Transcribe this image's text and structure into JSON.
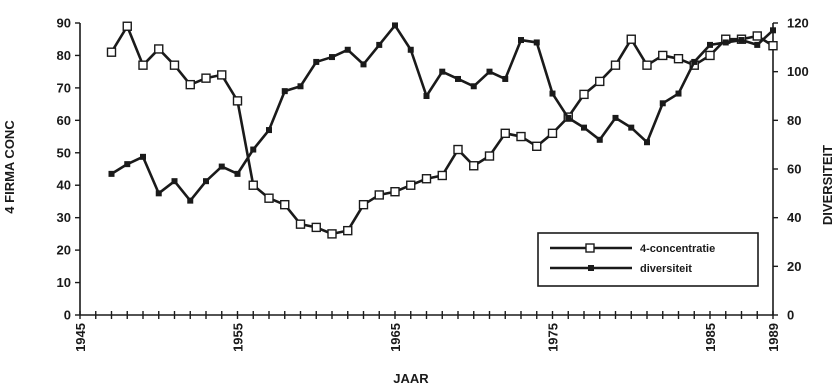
{
  "chart_data": {
    "type": "line",
    "xlabel": "JAAR",
    "ylabel_left": "4 FIRMA CONC",
    "ylabel_right": "DIVERSITEIT",
    "xlim": [
      1945,
      1989
    ],
    "ylim_left": [
      0,
      90
    ],
    "ylim_right": [
      0,
      120
    ],
    "x_ticks": [
      "1945",
      "1955",
      "1965",
      "1975",
      "1985",
      "1989"
    ],
    "y_ticks_left": [
      "0",
      "10",
      "20",
      "30",
      "40",
      "50",
      "60",
      "70",
      "80",
      "90"
    ],
    "y_ticks_right": [
      "0",
      "20",
      "40",
      "60",
      "80",
      "100",
      "120"
    ],
    "legend_position": "center-right",
    "series": [
      {
        "name": "4-concentratie",
        "axis": "left",
        "marker": "open-square",
        "x": [
          1947,
          1948,
          1949,
          1950,
          1951,
          1952,
          1953,
          1954,
          1955,
          1956,
          1957,
          1958,
          1959,
          1960,
          1961,
          1962,
          1963,
          1964,
          1965,
          1966,
          1967,
          1968,
          1969,
          1970,
          1971,
          1972,
          1973,
          1974,
          1975,
          1976,
          1977,
          1978,
          1979,
          1980,
          1981,
          1982,
          1983,
          1984,
          1985,
          1986,
          1987,
          1988,
          1989
        ],
        "values": [
          81,
          89,
          77,
          82,
          77,
          71,
          73,
          74,
          66,
          40,
          36,
          34,
          28,
          27,
          25,
          26,
          34,
          37,
          38,
          40,
          42,
          43,
          51,
          46,
          49,
          56,
          55,
          52,
          56,
          61,
          68,
          72,
          77,
          85,
          77,
          80,
          79,
          77,
          80,
          85,
          85,
          86,
          83
        ]
      },
      {
        "name": "diversiteit",
        "axis": "right",
        "marker": "filled-square",
        "x": [
          1947,
          1948,
          1949,
          1950,
          1951,
          1952,
          1953,
          1954,
          1955,
          1956,
          1957,
          1958,
          1959,
          1960,
          1961,
          1962,
          1963,
          1964,
          1965,
          1966,
          1967,
          1968,
          1969,
          1970,
          1971,
          1972,
          1973,
          1974,
          1975,
          1976,
          1977,
          1978,
          1979,
          1980,
          1981,
          1982,
          1983,
          1984,
          1985,
          1986,
          1987,
          1988,
          1989
        ],
        "values": [
          58,
          62,
          65,
          50,
          55,
          47,
          55,
          61,
          58,
          68,
          76,
          92,
          94,
          104,
          106,
          109,
          103,
          111,
          119,
          109,
          90,
          100,
          97,
          94,
          100,
          97,
          113,
          112,
          91,
          81,
          77,
          72,
          81,
          77,
          71,
          87,
          91,
          104,
          111,
          112,
          113,
          111,
          117
        ]
      }
    ]
  }
}
